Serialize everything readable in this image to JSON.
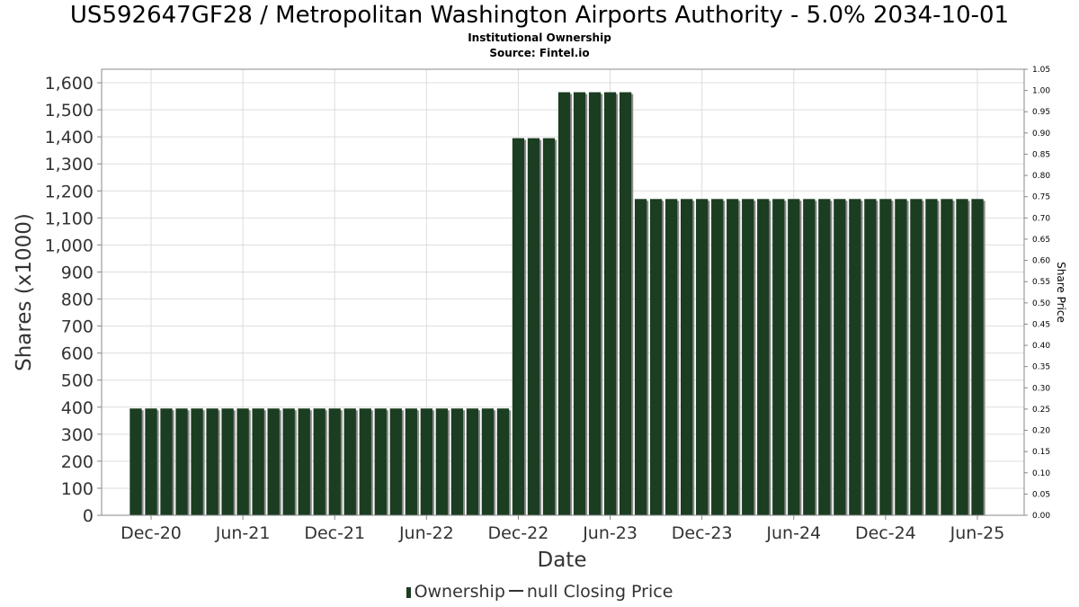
{
  "title": "US592647GF28 / Metropolitan Washington Airports Authority - 5.0% 2034-10-01",
  "subtitle": "Institutional Ownership",
  "source": "Source: Fintel.io",
  "legend": {
    "ownership": "Ownership",
    "price": "null Closing Price"
  },
  "colors": {
    "bar": "#1b3d21",
    "bar_shadow": "#8a8a8a",
    "grid": "#dddddd",
    "axis": "#888888"
  },
  "chart_data": {
    "type": "bar",
    "xlabel": "Date",
    "ylabel": "Shares (x1000)",
    "y2label": "Share Price",
    "ylim": [
      0,
      1650
    ],
    "y2lim": [
      0,
      1.05
    ],
    "y_ticks": [
      "0",
      "100",
      "200",
      "300",
      "400",
      "500",
      "600",
      "700",
      "800",
      "900",
      "1,000",
      "1,100",
      "1,200",
      "1,300",
      "1,400",
      "1,500",
      "1,600"
    ],
    "y2_ticks": [
      "0.00",
      "0.05",
      "0.10",
      "0.15",
      "0.20",
      "0.25",
      "0.30",
      "0.35",
      "0.40",
      "0.45",
      "0.50",
      "0.55",
      "0.60",
      "0.65",
      "0.70",
      "0.75",
      "0.80",
      "0.85",
      "0.90",
      "0.95",
      "1.00",
      "1.05"
    ],
    "x_ticks": [
      "Dec-20",
      "Jun-21",
      "Dec-21",
      "Jun-22",
      "Dec-22",
      "Jun-23",
      "Dec-23",
      "Jun-24",
      "Dec-24",
      "Jun-25"
    ],
    "grid": true,
    "legend_position": "bottom",
    "series": [
      {
        "name": "Ownership",
        "x": [
          "2020-11",
          "2020-12",
          "2021-01",
          "2021-02",
          "2021-03",
          "2021-04",
          "2021-05",
          "2021-06",
          "2021-07",
          "2021-08",
          "2021-09",
          "2021-10",
          "2021-11",
          "2021-12",
          "2022-01",
          "2022-02",
          "2022-03",
          "2022-04",
          "2022-05",
          "2022-06",
          "2022-07",
          "2022-08",
          "2022-09",
          "2022-10",
          "2022-11",
          "2022-12",
          "2023-01",
          "2023-02",
          "2023-03",
          "2023-04",
          "2023-05",
          "2023-06",
          "2023-07",
          "2023-08",
          "2023-09",
          "2023-10",
          "2023-11",
          "2023-12",
          "2024-01",
          "2024-02",
          "2024-03",
          "2024-04",
          "2024-05",
          "2024-06",
          "2024-07",
          "2024-08",
          "2024-09",
          "2024-10",
          "2024-11",
          "2024-12",
          "2025-01",
          "2025-02",
          "2025-03",
          "2025-04",
          "2025-05",
          "2025-06"
        ],
        "values": [
          395,
          395,
          395,
          395,
          395,
          395,
          395,
          395,
          395,
          395,
          395,
          395,
          395,
          395,
          395,
          395,
          395,
          395,
          395,
          395,
          395,
          395,
          395,
          395,
          395,
          1395,
          1395,
          1395,
          1565,
          1565,
          1565,
          1565,
          1565,
          1170,
          1170,
          1170,
          1170,
          1170,
          1170,
          1170,
          1170,
          1170,
          1170,
          1170,
          1170,
          1170,
          1170,
          1170,
          1170,
          1170,
          1170,
          1170,
          1170,
          1170,
          1170,
          1170
        ]
      }
    ]
  }
}
